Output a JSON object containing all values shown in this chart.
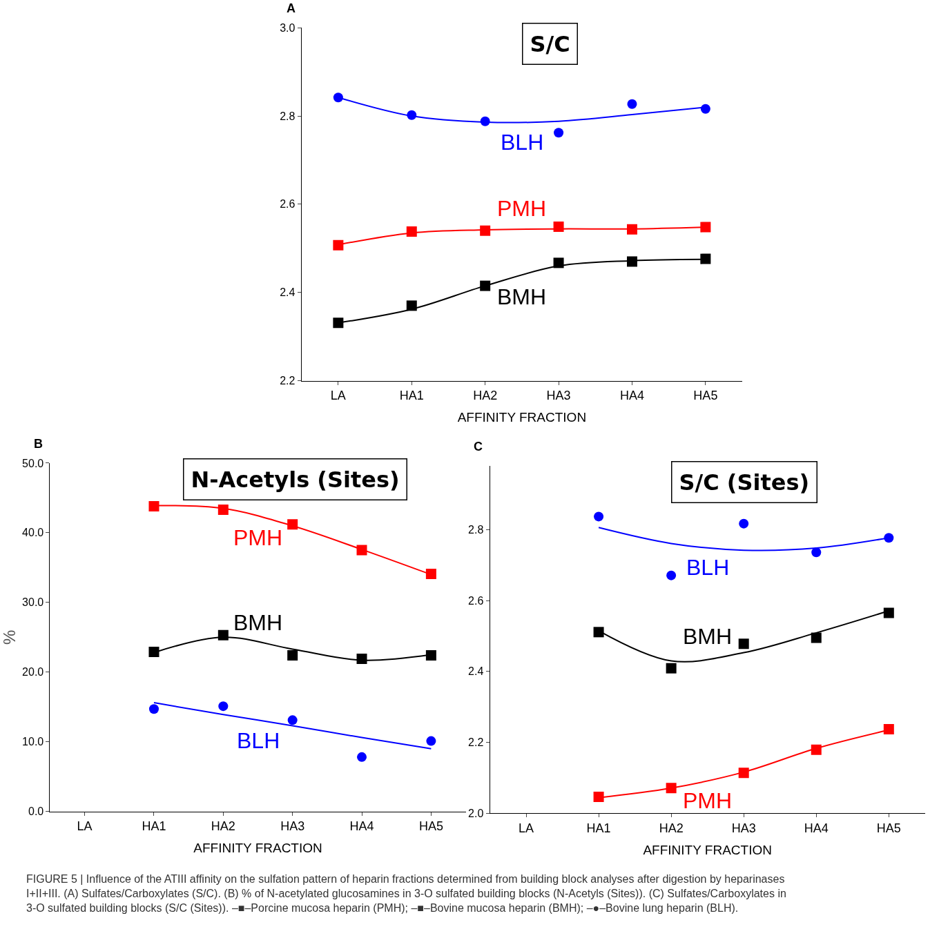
{
  "chart_data": [
    {
      "type": "scatter",
      "title": "S/C",
      "xlabel": "AFFINITY FRACTION",
      "categories": [
        "LA",
        "HA1",
        "HA2",
        "HA3",
        "HA4",
        "HA5"
      ],
      "ylim": [
        2.2,
        3.0
      ],
      "yticks": [
        2.2,
        2.4,
        2.6,
        2.8,
        {
          "value": 3.0,
          "label": "3.0"
        }
      ],
      "grid": false,
      "annotations": [
        "A"
      ],
      "series": [
        {
          "name": "BLH",
          "color": "#0000ff",
          "marker": "circle",
          "values": [
            2.842,
            2.802,
            2.788,
            2.762,
            2.827,
            2.816
          ]
        },
        {
          "name": "PMH",
          "color": "#ff0000",
          "marker": "square",
          "values": [
            2.507,
            2.538,
            2.54,
            2.549,
            2.543,
            2.548
          ]
        },
        {
          "name": "BMH",
          "color": "#000000",
          "marker": "square",
          "values": [
            2.331,
            2.37,
            2.415,
            2.467,
            2.47,
            2.476
          ]
        },
        {
          "type": "line",
          "color": "#0000ff",
          "marker": "none",
          "values": [
            2.842,
            2.8,
            2.786,
            2.788,
            2.803,
            2.82
          ]
        },
        {
          "type": "line",
          "color": "#ff0000",
          "marker": "none",
          "values": [
            2.508,
            2.535,
            2.542,
            2.544,
            2.544,
            2.548
          ]
        },
        {
          "type": "line",
          "color": "#000000",
          "marker": "none",
          "values": [
            2.331,
            2.362,
            2.415,
            2.46,
            2.472,
            2.475
          ]
        }
      ]
    },
    {
      "type": "scatter",
      "title": "N-Acetyls (Sites)",
      "xlabel": "AFFINITY FRACTION",
      "ylabel": "%",
      "categories": [
        "LA",
        "HA1",
        "HA2",
        "HA3",
        "HA4",
        "HA5"
      ],
      "ylim": [
        0,
        50
      ],
      "yticks": [
        {
          "value": 0,
          "label": "0.0"
        },
        {
          "value": 10,
          "label": "10.0"
        },
        {
          "value": 20,
          "label": "20.0"
        },
        {
          "value": 30,
          "label": "30.0"
        },
        {
          "value": 40,
          "label": "40.0"
        },
        {
          "value": 50,
          "label": "50.0"
        }
      ],
      "grid": false,
      "annotations": [
        "B"
      ],
      "series": [
        {
          "name": "PMH",
          "color": "#ff0000",
          "marker": "square",
          "values": [
            null,
            43.8,
            43.3,
            41.2,
            37.5,
            34.1
          ]
        },
        {
          "name": "BMH",
          "color": "#000000",
          "marker": "square",
          "values": [
            null,
            22.9,
            25.3,
            22.4,
            21.9,
            22.4
          ]
        },
        {
          "name": "BLH",
          "color": "#0000ff",
          "marker": "circle",
          "values": [
            null,
            14.7,
            15.1,
            13.1,
            7.8,
            10.1
          ]
        },
        {
          "type": "line",
          "color": "#ff0000",
          "marker": "none",
          "values": [
            null,
            43.9,
            43.5,
            41.0,
            37.6,
            34.0
          ]
        },
        {
          "type": "line",
          "color": "#000000",
          "marker": "none",
          "values": [
            null,
            22.8,
            25.0,
            23.3,
            21.7,
            22.5
          ]
        },
        {
          "type": "line",
          "color": "#0000ff",
          "marker": "none",
          "values": [
            null,
            15.6,
            13.9,
            12.3,
            10.6,
            9.0
          ]
        }
      ]
    },
    {
      "type": "scatter",
      "title": "S/C (Sites)",
      "xlabel": "AFFINITY FRACTION",
      "categories": [
        "LA",
        "HA1",
        "HA2",
        "HA3",
        "HA4",
        "HA5"
      ],
      "ylim": [
        2.0,
        2.98
      ],
      "yticks": [
        {
          "value": 2.0,
          "label": "2.0"
        },
        2.2,
        2.4,
        2.6,
        2.8
      ],
      "grid": false,
      "annotations": [
        "C",
        "FIGURE 5 | Influence of the ATIII affinity on the sulfation pattern of heparin fractions determined from building block analyses after digestion by heparinases I+II+III. (A) Sulfates/Carboxylates (S/C). (B) % of N-acetylated glucosamines in 3-O sulfated building blocks (N-Acetyls (Sites)). (C) Sulfates/Carboxylates in 3-O sulfated building blocks (S/C (Sites)). –■–Porcine mucosa heparin (PMH); –■–Bovine mucosa heparin (BMH); –●–Bovine lung heparin (BLH)."
      ],
      "series": [
        {
          "name": "BLH",
          "color": "#0000ff",
          "marker": "circle",
          "values": [
            null,
            2.837,
            2.671,
            2.817,
            2.736,
            2.777
          ]
        },
        {
          "name": "BMH",
          "color": "#000000",
          "marker": "square",
          "values": [
            null,
            2.511,
            2.409,
            2.478,
            2.495,
            2.565
          ]
        },
        {
          "name": "PMH",
          "color": "#ff0000",
          "marker": "square",
          "values": [
            null,
            2.046,
            2.071,
            2.114,
            2.179,
            2.237
          ]
        },
        {
          "type": "line",
          "color": "#0000ff",
          "marker": "none",
          "values": [
            null,
            2.806,
            2.761,
            2.742,
            2.748,
            2.777
          ]
        },
        {
          "type": "line",
          "color": "#000000",
          "marker": "none",
          "values": [
            null,
            2.515,
            2.43,
            2.453,
            2.509,
            2.571
          ]
        },
        {
          "type": "line",
          "color": "#ff0000",
          "marker": "none",
          "values": [
            null,
            2.044,
            2.071,
            2.116,
            2.183,
            2.235
          ]
        }
      ]
    }
  ]
}
